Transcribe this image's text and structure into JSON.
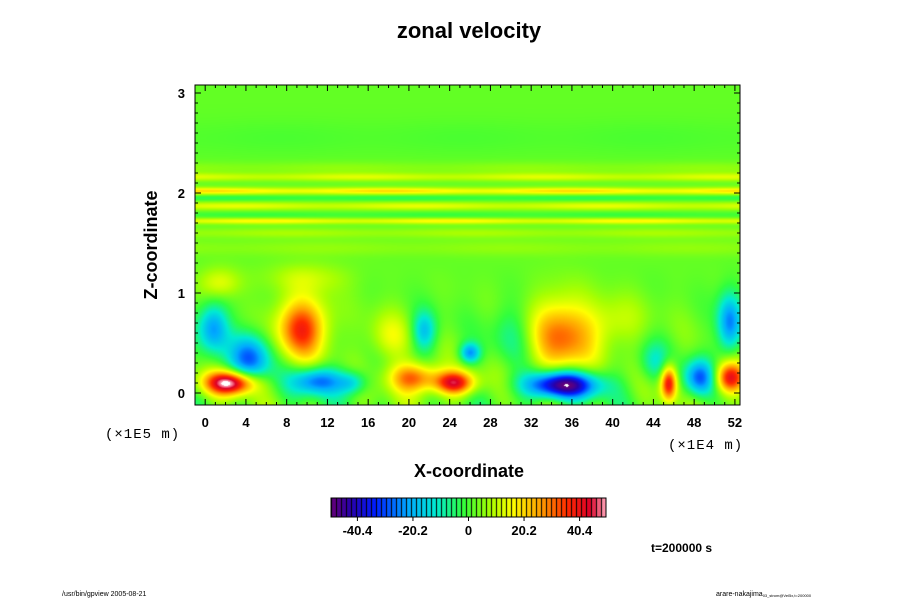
{
  "chart_data": {
    "type": "heatmap",
    "title": "zonal velocity",
    "xlabel": "X-coordinate",
    "ylabel": "Z-coordinate",
    "x_scale_label": "(×1E4 m)",
    "y_scale_label": "(×1E5 m)",
    "xlim": [
      -1,
      52.5
    ],
    "ylim": [
      -0.12,
      3.08
    ],
    "xticks": [
      0,
      4,
      8,
      12,
      16,
      20,
      24,
      28,
      32,
      36,
      40,
      44,
      48,
      52
    ],
    "yticks": [
      0,
      1,
      2,
      3
    ],
    "colorbar": {
      "min": -50,
      "max": 50,
      "ticks": [
        -40.4,
        -20.2,
        0,
        20.2,
        40.4
      ],
      "tick_labels": [
        "-40.4",
        "-20.2",
        "0",
        "20.2",
        "40.4"
      ]
    },
    "background_value": 2,
    "bands": [
      {
        "z": 2.55,
        "w": 0.18,
        "v": -2
      },
      {
        "z": 2.25,
        "w": 0.06,
        "v": 4
      },
      {
        "z": 2.16,
        "w": 0.04,
        "v": 11
      },
      {
        "z": 2.02,
        "w": 0.035,
        "v": 18
      },
      {
        "z": 1.95,
        "w": 0.03,
        "v": -6
      },
      {
        "z": 1.87,
        "w": 0.04,
        "v": 12
      },
      {
        "z": 1.78,
        "w": 0.035,
        "v": -4
      },
      {
        "z": 1.72,
        "w": 0.03,
        "v": 15
      },
      {
        "z": 1.6,
        "w": 0.05,
        "v": 6
      },
      {
        "z": 1.45,
        "w": 0.08,
        "v": 4
      }
    ],
    "features": [
      {
        "x": 2.5,
        "z": 0.1,
        "rx": 2.5,
        "rz": 0.12,
        "v": 50
      },
      {
        "x": 4.5,
        "z": 0.35,
        "rx": 2.0,
        "rz": 0.25,
        "v": -30
      },
      {
        "x": 0.8,
        "z": 0.65,
        "rx": 1.5,
        "rz": 0.25,
        "v": -25
      },
      {
        "x": 9.5,
        "z": 0.65,
        "rx": 2.5,
        "rz": 0.3,
        "v": 35
      },
      {
        "x": 11.0,
        "z": 0.12,
        "rx": 2.5,
        "rz": 0.14,
        "v": -30
      },
      {
        "x": 14.5,
        "z": 0.1,
        "rx": 1.5,
        "rz": 0.12,
        "v": -18
      },
      {
        "x": 20.5,
        "z": 0.15,
        "rx": 2.5,
        "rz": 0.15,
        "v": 30
      },
      {
        "x": 24.5,
        "z": 0.1,
        "rx": 2.0,
        "rz": 0.12,
        "v": 40
      },
      {
        "x": 21.5,
        "z": 0.62,
        "rx": 1.2,
        "rz": 0.2,
        "v": -20
      },
      {
        "x": 26.0,
        "z": 0.4,
        "rx": 1.0,
        "rz": 0.1,
        "v": -25
      },
      {
        "x": 35.0,
        "z": 0.55,
        "rx": 3.0,
        "rz": 0.4,
        "v": 28
      },
      {
        "x": 35.0,
        "z": 0.08,
        "rx": 3.5,
        "rz": 0.14,
        "v": -55
      },
      {
        "x": 45.5,
        "z": 0.1,
        "rx": 0.8,
        "rz": 0.18,
        "v": 40
      },
      {
        "x": 48.5,
        "z": 0.15,
        "rx": 1.5,
        "rz": 0.18,
        "v": -30
      },
      {
        "x": 51.5,
        "z": 0.15,
        "rx": 1.5,
        "rz": 0.16,
        "v": 40
      },
      {
        "x": 51.5,
        "z": 0.7,
        "rx": 1.2,
        "rz": 0.3,
        "v": -28
      },
      {
        "x": 1.5,
        "z": 1.1,
        "rx": 2.0,
        "rz": 0.15,
        "v": 12
      },
      {
        "x": 18.0,
        "z": 0.55,
        "rx": 2.0,
        "rz": 0.25,
        "v": 12
      },
      {
        "x": 40.0,
        "z": 0.7,
        "rx": 3.0,
        "rz": 0.25,
        "v": 10
      },
      {
        "x": 30.0,
        "z": 0.6,
        "rx": 2.0,
        "rz": 0.3,
        "v": -8
      },
      {
        "x": 10.0,
        "z": 1.15,
        "rx": 4.0,
        "rz": 0.15,
        "v": 8
      },
      {
        "x": 44.0,
        "z": 0.3,
        "rx": 1.5,
        "rz": 0.2,
        "v": -12
      }
    ]
  },
  "annotations": {
    "time": "t=200000 s",
    "footer_left": "/usr/bin/gpview 2005-08-21",
    "footer_right_main": "arare-nakajima",
    "footer_right_sub": "03_strom@Vel5x,t=200000"
  }
}
